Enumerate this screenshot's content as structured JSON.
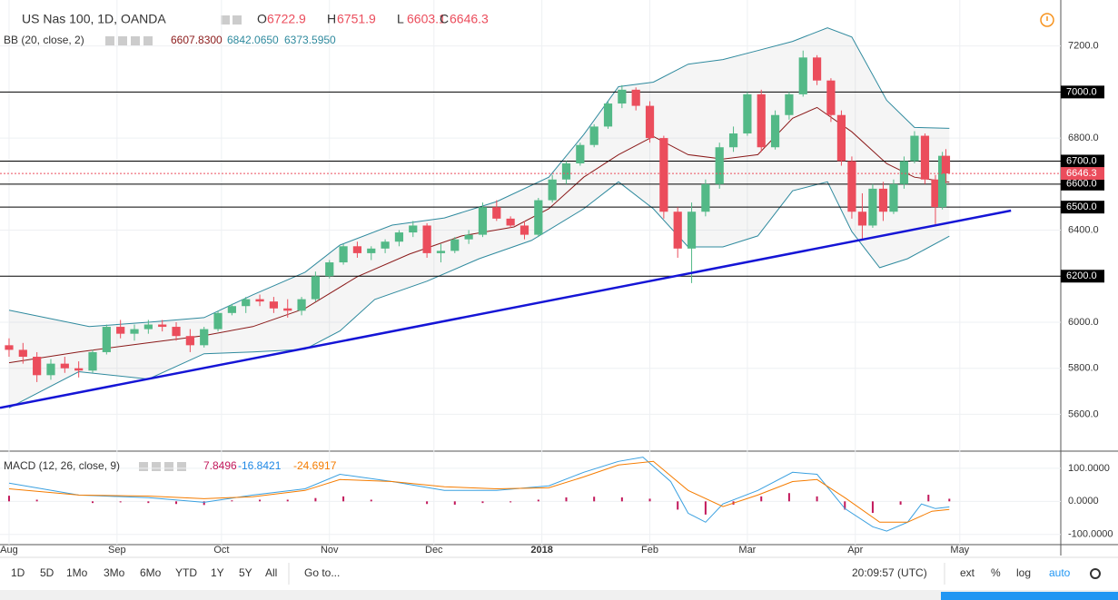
{
  "header": {
    "symbol": "US Nas 100, 1D, OANDA",
    "ohlc_prefixes": [
      "O",
      "H",
      "L",
      "C"
    ]
  },
  "chart_data": [
    {
      "type": "candlestick",
      "up_color": "#53b987",
      "down_color": "#eb4d5c",
      "candles": [
        [
          0,
          5900,
          5930,
          5850,
          5880
        ],
        [
          4,
          5880,
          5910,
          5820,
          5850
        ],
        [
          8,
          5850,
          5870,
          5740,
          5770
        ],
        [
          12,
          5770,
          5840,
          5750,
          5820
        ],
        [
          16,
          5820,
          5850,
          5780,
          5800
        ],
        [
          20,
          5800,
          5830,
          5760,
          5790
        ],
        [
          24,
          5790,
          5880,
          5780,
          5870
        ],
        [
          28,
          5870,
          5990,
          5860,
          5980
        ],
        [
          32,
          5980,
          6010,
          5930,
          5950
        ],
        [
          36,
          5950,
          5990,
          5920,
          5970
        ],
        [
          40,
          5970,
          6010,
          5950,
          5990
        ],
        [
          44,
          5990,
          6010,
          5960,
          5980
        ],
        [
          48,
          5980,
          6000,
          5920,
          5940
        ],
        [
          52,
          5940,
          5970,
          5870,
          5900
        ],
        [
          56,
          5900,
          5980,
          5890,
          5970
        ],
        [
          60,
          5970,
          6050,
          5960,
          6040
        ],
        [
          64,
          6040,
          6080,
          6030,
          6070
        ],
        [
          68,
          6070,
          6110,
          6040,
          6100
        ],
        [
          72,
          6100,
          6120,
          6070,
          6090
        ],
        [
          76,
          6090,
          6110,
          6040,
          6060
        ],
        [
          80,
          6060,
          6100,
          6020,
          6050
        ],
        [
          84,
          6050,
          6110,
          6030,
          6100
        ],
        [
          88,
          6100,
          6220,
          6090,
          6200
        ],
        [
          92,
          6200,
          6270,
          6190,
          6260
        ],
        [
          96,
          6260,
          6340,
          6250,
          6330
        ],
        [
          100,
          6330,
          6350,
          6280,
          6300
        ],
        [
          104,
          6300,
          6330,
          6270,
          6320
        ],
        [
          108,
          6320,
          6360,
          6300,
          6350
        ],
        [
          112,
          6350,
          6400,
          6330,
          6390
        ],
        [
          116,
          6390,
          6440,
          6370,
          6420
        ],
        [
          120,
          6420,
          6430,
          6280,
          6300
        ],
        [
          124,
          6300,
          6340,
          6260,
          6310
        ],
        [
          128,
          6310,
          6370,
          6300,
          6360
        ],
        [
          132,
          6360,
          6400,
          6340,
          6380
        ],
        [
          136,
          6380,
          6520,
          6370,
          6500
        ],
        [
          140,
          6500,
          6530,
          6440,
          6450
        ],
        [
          144,
          6450,
          6460,
          6410,
          6420
        ],
        [
          148,
          6420,
          6440,
          6360,
          6380
        ],
        [
          152,
          6380,
          6540,
          6370,
          6530
        ],
        [
          156,
          6530,
          6640,
          6520,
          6620
        ],
        [
          160,
          6620,
          6700,
          6600,
          6690
        ],
        [
          164,
          6690,
          6780,
          6680,
          6770
        ],
        [
          168,
          6770,
          6860,
          6760,
          6850
        ],
        [
          172,
          6850,
          6960,
          6840,
          6950
        ],
        [
          176,
          6950,
          7030,
          6930,
          7010
        ],
        [
          180,
          7010,
          7020,
          6920,
          6940
        ],
        [
          184,
          6940,
          6960,
          6780,
          6800
        ],
        [
          188,
          6800,
          6810,
          6450,
          6480
        ],
        [
          192,
          6480,
          6500,
          6280,
          6320
        ],
        [
          196,
          6320,
          6520,
          6170,
          6480
        ],
        [
          200,
          6480,
          6620,
          6460,
          6600
        ],
        [
          204,
          6600,
          6780,
          6580,
          6760
        ],
        [
          208,
          6760,
          6850,
          6740,
          6820
        ],
        [
          212,
          6820,
          7000,
          6810,
          6990
        ],
        [
          216,
          6990,
          7010,
          6740,
          6760
        ],
        [
          220,
          6760,
          6920,
          6750,
          6900
        ],
        [
          224,
          6900,
          7000,
          6880,
          6990
        ],
        [
          228,
          6990,
          7180,
          6980,
          7150
        ],
        [
          232,
          7150,
          7160,
          7030,
          7050
        ],
        [
          236,
          7050,
          7060,
          6870,
          6900
        ],
        [
          239,
          6900,
          6920,
          6680,
          6700
        ],
        [
          242,
          6700,
          6720,
          6450,
          6480
        ],
        [
          245,
          6480,
          6560,
          6360,
          6420
        ],
        [
          248,
          6420,
          6600,
          6410,
          6580
        ],
        [
          251,
          6580,
          6610,
          6440,
          6480
        ],
        [
          254,
          6480,
          6620,
          6470,
          6600
        ],
        [
          257,
          6600,
          6720,
          6580,
          6700
        ],
        [
          260,
          6700,
          6830,
          6690,
          6810
        ],
        [
          263,
          6810,
          6820,
          6600,
          6620
        ],
        [
          266,
          6620,
          6640,
          6420,
          6500
        ],
        [
          268,
          6500,
          6740,
          6490,
          6722.9
        ],
        [
          269,
          6722.9,
          6751.9,
          6603.1,
          6646.3
        ]
      ],
      "bb": {
        "label": "BB (20, close, 2)",
        "values": [
          6607.83,
          6842.065,
          6373.595
        ],
        "value_labels": [
          "6607.8300",
          "6842.0650",
          "6373.5950"
        ],
        "colors": [
          "#8b1a1a",
          "#2f8a9e",
          "#2f8a9e"
        ],
        "upper": {
          "color": "#2f8a9e",
          "x": [
            0,
            23,
            40,
            56,
            70,
            85,
            95,
            110,
            125,
            140,
            155,
            165,
            175,
            185,
            195,
            205,
            215,
            225,
            235,
            242,
            252,
            260,
            270
          ],
          "values": [
            6052,
            5981,
            6000,
            6020,
            6119,
            6217,
            6335,
            6422,
            6453,
            6524,
            6630,
            6815,
            7023,
            7043,
            7121,
            7141,
            7180,
            7220,
            7279,
            7239,
            6964,
            6846,
            6842.065
          ]
        },
        "middle": {
          "color": "#8b1a1a",
          "x": [
            0,
            20,
            40,
            56,
            70,
            85,
            100,
            115,
            130,
            145,
            155,
            165,
            175,
            185,
            195,
            205,
            215,
            225,
            232,
            242,
            252,
            260,
            270
          ],
          "values": [
            5824,
            5871,
            5911,
            5942,
            5981,
            6060,
            6198,
            6296,
            6375,
            6414,
            6493,
            6630,
            6728,
            6807,
            6728,
            6709,
            6728,
            6886,
            6933,
            6827,
            6689,
            6630,
            6607.83
          ]
        },
        "lower": {
          "color": "#2f8a9e",
          "x": [
            0,
            20,
            40,
            56,
            70,
            85,
            95,
            105,
            120,
            135,
            150,
            165,
            175,
            185,
            195,
            205,
            215,
            225,
            235,
            242,
            250,
            258,
            270
          ],
          "values": [
            5628,
            5785,
            5753,
            5863,
            5871,
            5883,
            5962,
            6099,
            6178,
            6276,
            6355,
            6493,
            6610,
            6493,
            6327,
            6327,
            6375,
            6571,
            6610,
            6394,
            6237,
            6276,
            6373.595
          ]
        }
      },
      "trendline": {
        "color": "#1515d6",
        "x": [
          -2.6,
          287.7
        ],
        "values": [
          5628,
          6485
        ]
      },
      "levels": [
        {
          "value": 7000,
          "label": "7000.0"
        },
        {
          "value": 6700,
          "label": "6700.0"
        },
        {
          "value": 6600,
          "label": "6600.0"
        },
        {
          "value": 6500,
          "label": "6500.0"
        },
        {
          "value": 6200,
          "label": "6200.0"
        }
      ],
      "xlim": [
        -2.6,
        302
      ],
      "ylim": [
        5440,
        7380
      ],
      "xticks": [
        {
          "value": 0,
          "label": "Aug"
        },
        {
          "value": 31,
          "label": "Sep"
        },
        {
          "value": 61,
          "label": "Oct"
        },
        {
          "value": 92,
          "label": "Nov"
        },
        {
          "value": 122,
          "label": "Dec"
        },
        {
          "value": 153,
          "label": "2018"
        },
        {
          "value": 184,
          "label": "Feb"
        },
        {
          "value": 212,
          "label": "Mar"
        },
        {
          "value": 243,
          "label": "Apr"
        },
        {
          "value": 273,
          "label": "May"
        }
      ],
      "yticks": [
        {
          "value": 5600,
          "label": "5600.0"
        },
        {
          "value": 5800,
          "label": "5800.0"
        },
        {
          "value": 6000,
          "label": "6000.0"
        },
        {
          "value": 6400,
          "label": "6400.0"
        },
        {
          "value": 6800,
          "label": "6800.0"
        },
        {
          "value": 7200,
          "label": "7200.0"
        }
      ],
      "grid": true
    },
    {
      "type": "macd",
      "label": "MACD (12, 26, close, 9)",
      "values": [
        7.8496,
        -16.8421,
        -24.6917
      ],
      "colors": [
        "#c2185b",
        "#1e88e5",
        "#f57c00"
      ],
      "macd": {
        "color": "#3aa0e0",
        "x": [
          0,
          20,
          40,
          56,
          70,
          85,
          95,
          110,
          125,
          140,
          155,
          165,
          175,
          182,
          190,
          195,
          200,
          205,
          215,
          225,
          232,
          240,
          248,
          252,
          258,
          262,
          266,
          270
        ],
        "values": [
          55,
          19,
          11,
          -3,
          19,
          38,
          82,
          60,
          33,
          33,
          47,
          88,
          121,
          134,
          60,
          -36,
          -63,
          -8,
          33,
          88,
          82,
          -22,
          -77,
          -90,
          -63,
          -8,
          -22,
          -16.8421
        ]
      },
      "signal": {
        "color": "#f57c00",
        "x": [
          0,
          20,
          40,
          56,
          70,
          85,
          95,
          110,
          125,
          140,
          155,
          165,
          175,
          185,
          195,
          205,
          215,
          225,
          232,
          240,
          250,
          258,
          265,
          270
        ],
        "values": [
          38,
          19,
          16,
          8,
          14,
          33,
          66,
          60,
          44,
          38,
          41,
          74,
          110,
          121,
          33,
          -16,
          19,
          60,
          66,
          11,
          -63,
          -63,
          -30,
          -24.6917
        ]
      },
      "histogram": {
        "color": "#c2185b",
        "x": [
          0,
          8,
          16,
          24,
          32,
          40,
          48,
          56,
          64,
          72,
          80,
          88,
          96,
          104,
          112,
          120,
          128,
          136,
          144,
          152,
          160,
          168,
          176,
          184,
          192,
          200,
          208,
          216,
          224,
          232,
          240,
          248,
          256,
          264,
          270
        ],
        "values": [
          17,
          5,
          0,
          -5,
          -3,
          -5,
          -8,
          -11,
          3,
          5,
          5,
          10,
          15,
          5,
          0,
          -8,
          -10,
          -5,
          -3,
          5,
          12,
          14,
          12,
          8,
          -25,
          -40,
          -10,
          15,
          25,
          15,
          -25,
          -35,
          -10,
          20,
          7.8496
        ]
      },
      "ylim": [
        -131,
        152
      ],
      "yticks": [
        {
          "value": -100,
          "label": "-100.0000"
        },
        {
          "value": 0,
          "label": "0.0000"
        },
        {
          "value": 100,
          "label": "100.0000"
        }
      ]
    }
  ],
  "toolbar": {
    "ranges": [
      "1D",
      "5D",
      "1Mo",
      "3Mo",
      "6Mo",
      "YTD",
      "1Y",
      "5Y",
      "All"
    ],
    "goto": "Go to...",
    "time": "20:09:57 (UTC)",
    "options": [
      "ext",
      "%",
      "log",
      "auto"
    ]
  }
}
